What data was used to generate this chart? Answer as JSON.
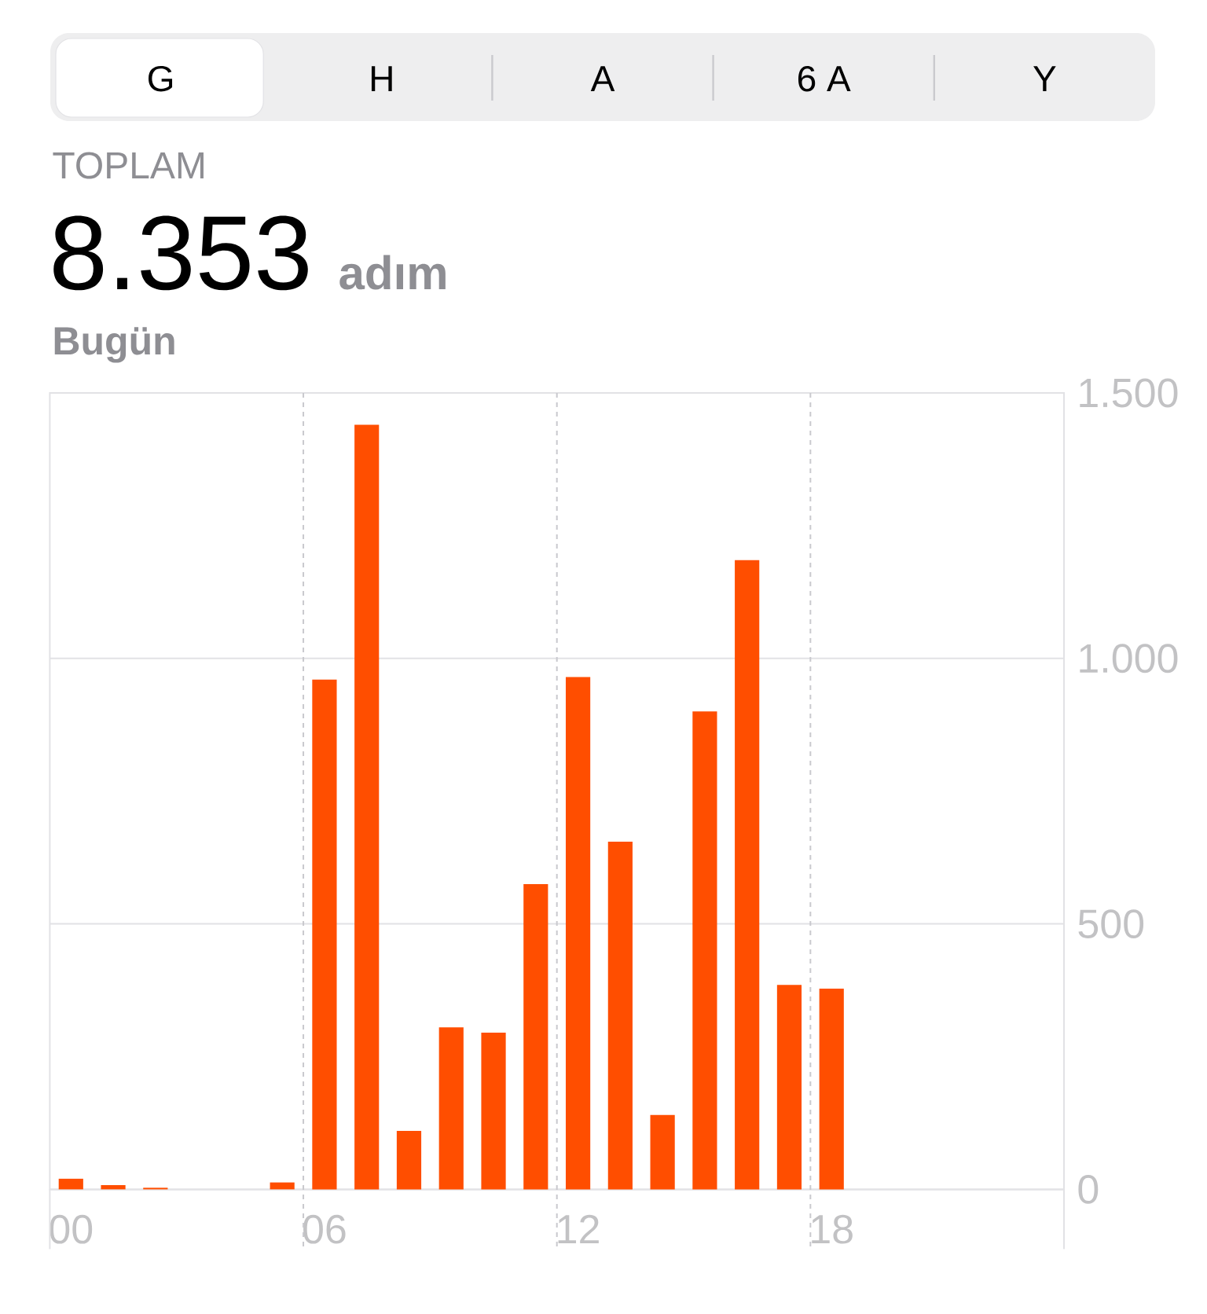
{
  "chart_data": {
    "type": "bar",
    "title": "TOPLAM",
    "subtitle": "Bugün",
    "annotations": [
      "G",
      "H",
      "A",
      "6 A",
      "Y",
      "8.353",
      "adım"
    ],
    "categories": [
      "00",
      null,
      null,
      null,
      null,
      null,
      "06",
      null,
      null,
      null,
      null,
      null,
      "12",
      null,
      null,
      null,
      null,
      null,
      "18",
      null,
      null,
      null,
      null,
      null
    ],
    "values": [
      20,
      8,
      3,
      0,
      0,
      13,
      960,
      1440,
      110,
      305,
      295,
      575,
      965,
      655,
      140,
      900,
      1185,
      385,
      378,
      null,
      null,
      null,
      null,
      null
    ],
    "color": "#ff4e00",
    "ylim": [
      0,
      1500
    ],
    "yticks": [
      0,
      500,
      {
        "value": 1000,
        "label": "1.000"
      },
      {
        "value": 1500,
        "label": "1.500"
      }
    ],
    "grid": true
  }
}
